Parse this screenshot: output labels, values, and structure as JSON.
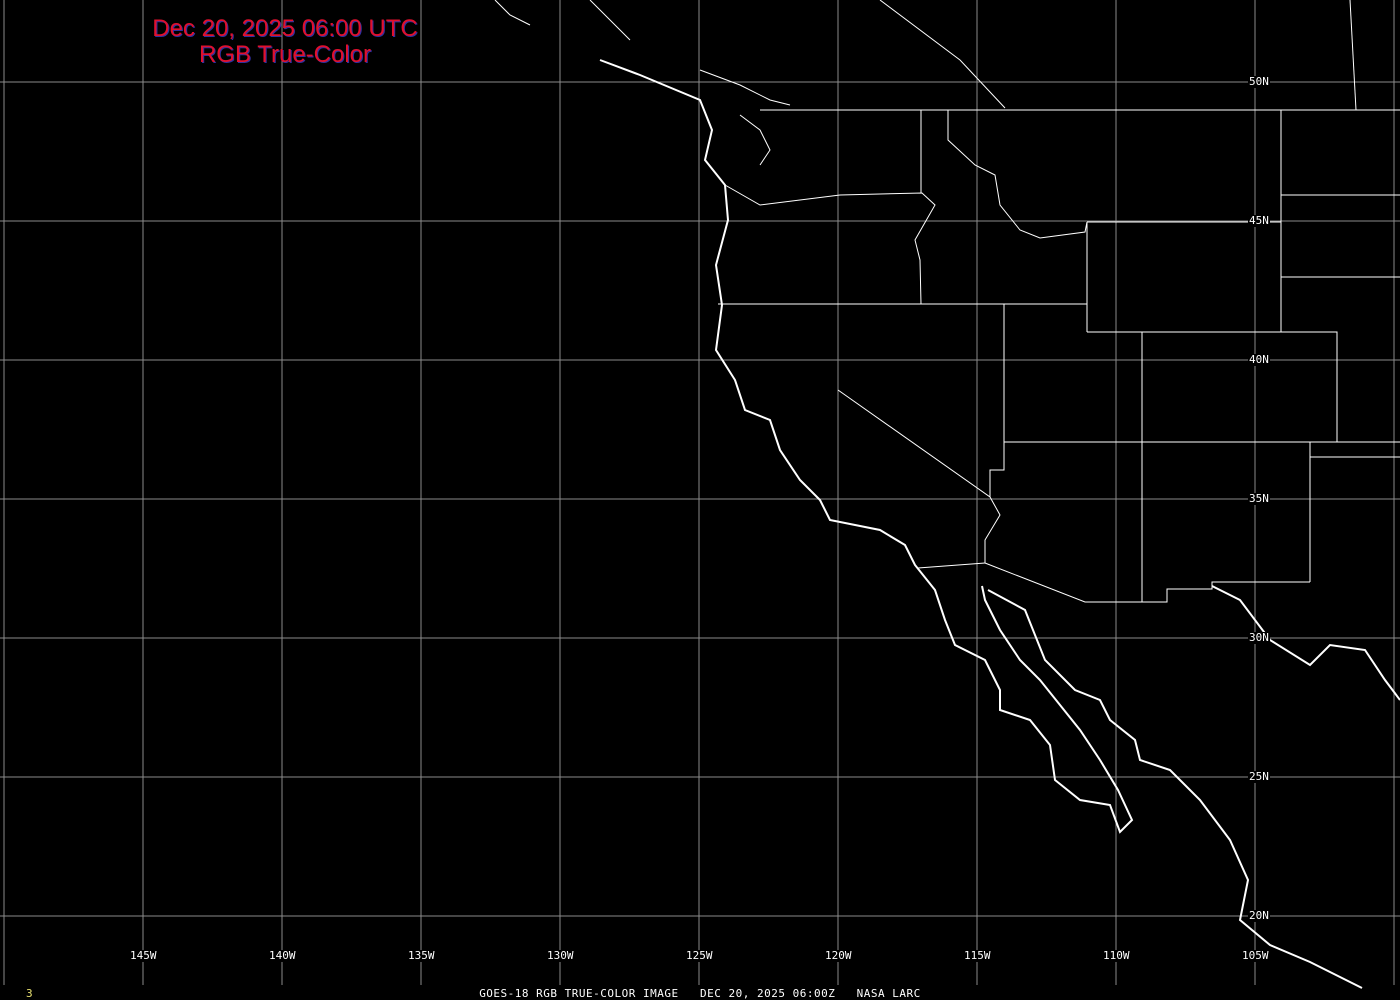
{
  "title": {
    "line1": "Dec 20, 2025 06:00 UTC",
    "line2": "RGB True-Color"
  },
  "footer": {
    "caption": "GOES-18 RGB TRUE-COLOR IMAGE   DEC 20, 2025 06:00Z   NASA LARC",
    "frame_number": "3"
  },
  "grid": {
    "longitudes": [
      "145W",
      "140W",
      "135W",
      "130W",
      "125W",
      "120W",
      "115W",
      "110W",
      "105W"
    ],
    "latitudes": [
      "50N",
      "45N",
      "40N",
      "35N",
      "30N",
      "25N",
      "20N"
    ],
    "grid_color": "#8a8a8a",
    "outline_color": "#ffffff",
    "background": "#000000"
  }
}
